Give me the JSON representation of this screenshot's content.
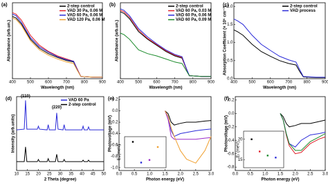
{
  "chart_data": [
    {
      "type": "line",
      "label": "(a)",
      "x_label": "Wavelength (nm)",
      "y_label": "Absorbance (arb.un.)",
      "x": [
        400,
        420,
        450,
        500,
        550,
        600,
        650,
        700,
        740,
        760,
        780,
        850,
        900
      ],
      "xlim": [
        400,
        900
      ],
      "xticks": [
        400,
        500,
        600,
        700,
        800,
        900
      ],
      "ylim": [
        0,
        1
      ],
      "yticks": [],
      "legend": "upper right",
      "series": [
        {
          "name": "2-step control",
          "color": "#000000",
          "values": [
            0.82,
            0.8,
            0.72,
            0.52,
            0.4,
            0.33,
            0.28,
            0.24,
            0.22,
            0.12,
            0.03,
            0.02,
            0.02
          ]
        },
        {
          "name": "VAD 30 Pa, 0.06 M",
          "color": "#e0202a",
          "values": [
            0.87,
            0.85,
            0.77,
            0.57,
            0.44,
            0.36,
            0.3,
            0.26,
            0.23,
            0.13,
            0.03,
            0.02,
            0.02
          ]
        },
        {
          "name": "VAD 60 Pa, 0.06 M",
          "color": "#2a2ad8",
          "values": [
            0.85,
            0.83,
            0.74,
            0.54,
            0.42,
            0.35,
            0.29,
            0.25,
            0.23,
            0.12,
            0.03,
            0.02,
            0.02
          ]
        },
        {
          "name": "VAD 120 Pa, 0.06 M",
          "color": "#f0a030",
          "values": [
            0.8,
            0.78,
            0.7,
            0.5,
            0.38,
            0.31,
            0.26,
            0.22,
            0.2,
            0.11,
            0.03,
            0.02,
            0.02
          ]
        }
      ]
    },
    {
      "type": "line",
      "label": "(b)",
      "x_label": "Wavelength (nm)",
      "y_label": "Absorbance (arb.un.)",
      "x": [
        400,
        420,
        450,
        500,
        550,
        600,
        650,
        700,
        740,
        760,
        780,
        850,
        900
      ],
      "xlim": [
        400,
        900
      ],
      "xticks": [
        400,
        500,
        600,
        700,
        800,
        900
      ],
      "ylim": [
        0,
        1
      ],
      "yticks": [],
      "legend": "upper right",
      "series": [
        {
          "name": "2-step control",
          "color": "#000000",
          "values": [
            0.88,
            0.86,
            0.79,
            0.62,
            0.52,
            0.44,
            0.36,
            0.3,
            0.27,
            0.15,
            0.04,
            0.03,
            0.03
          ]
        },
        {
          "name": "VAD 60 Pa, 0.03 M",
          "color": "#e0202a",
          "values": [
            0.9,
            0.88,
            0.81,
            0.64,
            0.53,
            0.45,
            0.37,
            0.31,
            0.28,
            0.15,
            0.04,
            0.03,
            0.03
          ]
        },
        {
          "name": "VAD 60 Pa, 0.06 M",
          "color": "#2a2ad8",
          "values": [
            0.92,
            0.9,
            0.83,
            0.66,
            0.55,
            0.46,
            0.38,
            0.32,
            0.29,
            0.16,
            0.04,
            0.03,
            0.03
          ]
        },
        {
          "name": "VAD 60 Pa, 0.09 M",
          "color": "#1a8a2a",
          "values": [
            0.6,
            0.58,
            0.52,
            0.38,
            0.33,
            0.3,
            0.26,
            0.22,
            0.2,
            0.12,
            0.04,
            0.03,
            0.03
          ]
        }
      ]
    },
    {
      "type": "line",
      "label": "(c)",
      "x_label": "Wavelength (nm)",
      "y_label": "Absorption Coefficient (× 10⁵ cm⁻¹)",
      "x": [
        400,
        420,
        450,
        500,
        550,
        600,
        650,
        700,
        740,
        760,
        780,
        850,
        900
      ],
      "xlim": [
        400,
        900
      ],
      "xticks": [
        400,
        500,
        600,
        700,
        800,
        900
      ],
      "ylim": [
        0,
        2.1
      ],
      "yticks": [
        {
          "value": 0,
          "label": "0.0"
        },
        0.5,
        {
          "value": 1,
          "label": "1.0"
        },
        1.5,
        {
          "value": 2,
          "label": "2.0"
        }
      ],
      "legend": "upper right",
      "series": [
        {
          "name": "2-step control",
          "color": "#000000",
          "values": [
            1.35,
            1.3,
            1.2,
            0.95,
            0.75,
            0.62,
            0.5,
            0.42,
            0.38,
            0.2,
            0.05,
            0.03,
            0.03
          ]
        },
        {
          "name": "VAD process",
          "color": "#2a2ad8",
          "values": [
            1.65,
            1.6,
            1.5,
            1.2,
            0.95,
            0.78,
            0.62,
            0.52,
            0.46,
            0.25,
            0.06,
            0.04,
            0.04
          ]
        }
      ]
    },
    {
      "type": "line",
      "label": "(d)",
      "x_label": "2 Theta (degree)",
      "y_label": "Intensity (arb.units)",
      "x": [
        10,
        13.5,
        14.1,
        14.7,
        19.5,
        20,
        20.5,
        24,
        24.5,
        25,
        27.8,
        28.4,
        29,
        31.3,
        31.8,
        32.3,
        40,
        40.5,
        41,
        42.5,
        43,
        43.5,
        50
      ],
      "xlim": [
        10,
        50
      ],
      "xticks": [
        10,
        15,
        20,
        25,
        30,
        35,
        40,
        45,
        50
      ],
      "ylim": [
        0,
        1
      ],
      "yticks": [],
      "legend": "upper right",
      "annotations": [
        {
          "text": "(110)",
          "x": 14.1,
          "y": 0.97
        },
        {
          "text": "(220)",
          "x": 28.4,
          "y": 0.82
        }
      ],
      "series": [
        {
          "name": "VAD 60 Pa",
          "color": "#2a2ad8",
          "values": [
            0.55,
            0.56,
            0.95,
            0.56,
            0.56,
            0.6,
            0.56,
            0.55,
            0.62,
            0.55,
            0.55,
            0.78,
            0.56,
            0.55,
            0.62,
            0.55,
            0.55,
            0.6,
            0.55,
            0.55,
            0.59,
            0.55,
            0.55
          ]
        },
        {
          "name": "2-step control",
          "color": "#000000",
          "values": [
            0.12,
            0.12,
            0.32,
            0.12,
            0.12,
            0.15,
            0.12,
            0.12,
            0.16,
            0.12,
            0.12,
            0.22,
            0.12,
            0.12,
            0.15,
            0.12,
            0.12,
            0.14,
            0.12,
            0.12,
            0.14,
            0.12,
            0.12
          ]
        }
      ]
    },
    {
      "type": "line",
      "label": "(e)",
      "x_label": "Photon energy (eV)",
      "y_label": "Photovoltage (mV)",
      "x": [
        1.5,
        1.6,
        1.7,
        1.8,
        2.0,
        2.2,
        2.5,
        2.8,
        3.0
      ],
      "xlim": [
        0,
        3
      ],
      "xticks": [
        {
          "value": 0,
          "label": "0.0"
        },
        0.5,
        {
          "value": 1,
          "label": "1.0"
        },
        1.5,
        {
          "value": 2,
          "label": "2.0"
        },
        2.5,
        {
          "value": 3,
          "label": "3.0"
        }
      ],
      "ylim": [
        -1.05,
        0.25
      ],
      "yticks": [
        0.2,
        {
          "value": 0,
          "label": "0.0"
        },
        -0.2,
        -0.4,
        -0.6,
        -0.8,
        {
          "value": -1,
          "label": "-1.0"
        }
      ],
      "series": [
        {
          "name": "2-step control",
          "color": "#000000",
          "values": [
            0,
            -0.05,
            -0.2,
            -0.25,
            -0.22,
            -0.2,
            -0.2,
            -0.18,
            -0.17
          ]
        },
        {
          "name": "VAD 30 Pa, 0.06 M",
          "color": "#2a2ad8",
          "values": [
            0,
            -0.1,
            -0.35,
            -0.45,
            -0.4,
            -0.38,
            -0.35,
            -0.33,
            -0.32
          ]
        },
        {
          "name": "VAD 60 Pa, 0.06 M",
          "color": "#9a2ac8",
          "values": [
            0,
            -0.15,
            -0.45,
            -0.5,
            -0.5,
            -0.5,
            -0.5,
            -0.48,
            -0.47
          ]
        },
        {
          "name": "VAD 120 Pa, 0.06 M",
          "color": "#f0a030",
          "values": [
            0,
            -0.1,
            -0.3,
            -0.45,
            -0.7,
            -0.85,
            -0.92,
            -0.7,
            -0.45
          ]
        }
      ],
      "inset": {
        "type": "scatter",
        "y_label": "Eₜ (meV)",
        "x": [
          1,
          2,
          3,
          4
        ],
        "values": [
          20,
          12,
          13,
          18
        ],
        "colors": [
          "#000000",
          "#2a2ad8",
          "#9a2ac8",
          "#f0a030"
        ],
        "xlim": [
          0,
          5
        ],
        "ylim": [
          10,
          22
        ],
        "yticks": []
      }
    },
    {
      "type": "line",
      "label": "(f)",
      "x_label": "Photon energy (eV)",
      "y_label": "Photovoltage (mV)",
      "x": [
        1.5,
        1.6,
        1.7,
        1.8,
        2.0,
        2.2,
        2.5,
        2.8,
        3.0
      ],
      "xlim": [
        0,
        3
      ],
      "xticks": [
        {
          "value": 0,
          "label": "0.0"
        },
        0.5,
        {
          "value": 1,
          "label": "1.0"
        },
        1.5,
        {
          "value": 2,
          "label": "2.0"
        },
        2.5,
        {
          "value": 3,
          "label": "3.0"
        }
      ],
      "ylim": [
        -0.85,
        0.25
      ],
      "yticks": [
        0.2,
        {
          "value": 0,
          "label": "0.0"
        },
        -0.2,
        -0.4,
        -0.6,
        -0.8
      ],
      "series": [
        {
          "name": "2-step control",
          "color": "#000000",
          "values": [
            0,
            -0.05,
            -0.15,
            -0.2,
            -0.18,
            -0.15,
            -0.15,
            -0.12,
            -0.1
          ]
        },
        {
          "name": "VAD 60 Pa, 0.03 M",
          "color": "#e0202a",
          "values": [
            0,
            -0.1,
            -0.32,
            -0.48,
            -0.6,
            -0.58,
            -0.45,
            -0.38,
            -0.35
          ]
        },
        {
          "name": "VAD 60 Pa, 0.06 M",
          "color": "#2a2ad8",
          "values": [
            0,
            -0.1,
            -0.3,
            -0.45,
            -0.5,
            -0.4,
            -0.32,
            -0.3,
            -0.28
          ]
        },
        {
          "name": "VAD 60 Pa, 0.09 M",
          "color": "#1a8a2a",
          "values": [
            0,
            -0.1,
            -0.3,
            -0.45,
            -0.55,
            -0.55,
            -0.42,
            -0.35,
            -0.3
          ]
        }
      ],
      "inset": {
        "type": "scatter",
        "y_label": "Eₜ (meV)",
        "x": [
          1,
          2,
          3,
          4
        ],
        "values": [
          20,
          17,
          16,
          15.5
        ],
        "colors": [
          "#000000",
          "#e0202a",
          "#1a8a2a",
          "#2a2ad8"
        ],
        "xlim": [
          0,
          5
        ],
        "ylim": [
          13,
          22
        ],
        "yticks": [
          15,
          20
        ]
      }
    }
  ]
}
